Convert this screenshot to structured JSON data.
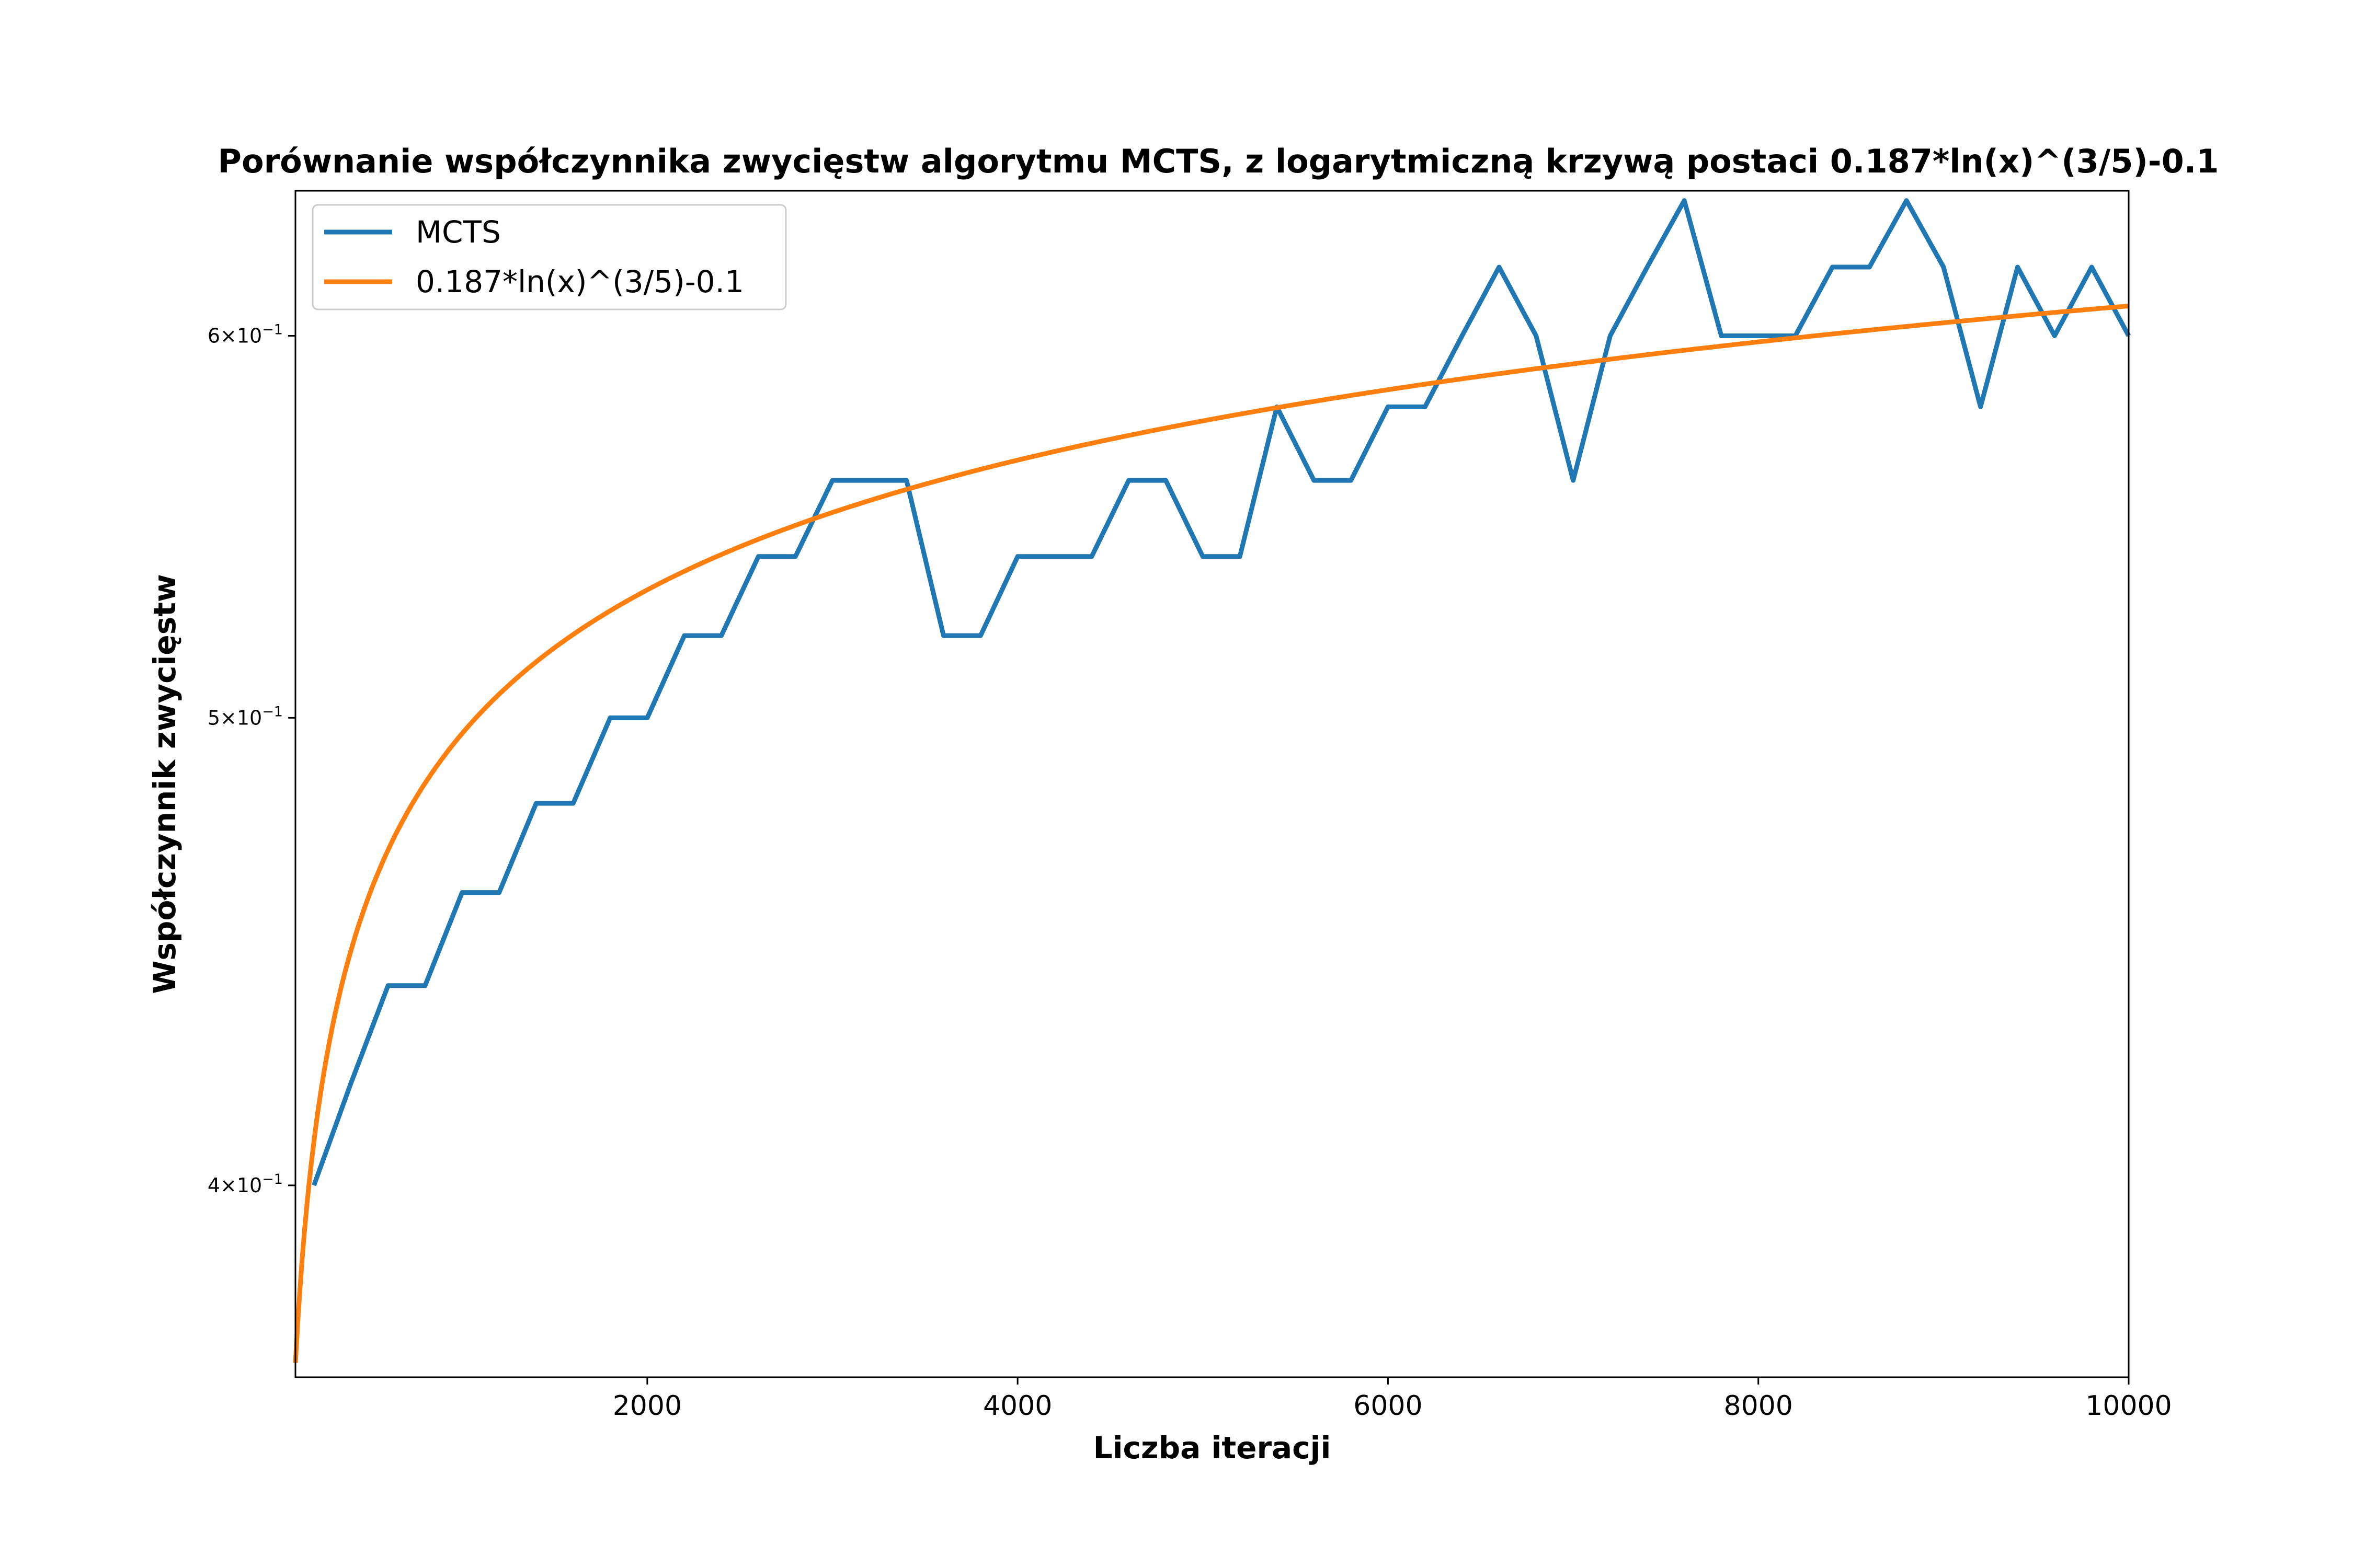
{
  "chart_data": {
    "type": "line",
    "title": "Porównanie współczynnika zwycięstw algorytmu MCTS, z logarytmiczną krzywą postaci 0.187*ln(x)^(3/5)-0.1",
    "xlabel": "Liczba iteracji",
    "ylabel": "Współczynnik zwycięstw",
    "xlim": [
      100,
      10000
    ],
    "ylim": [
      0.365,
      0.643
    ],
    "yscale": "log",
    "grid": false,
    "legend_position": "top-left",
    "x_ticks": [
      {
        "value": 2000,
        "label": "2000"
      },
      {
        "value": 4000,
        "label": "4000"
      },
      {
        "value": 6000,
        "label": "6000"
      },
      {
        "value": 8000,
        "label": "8000"
      },
      {
        "value": 10000,
        "label": "10000"
      }
    ],
    "y_ticks": [
      {
        "value": 0.4,
        "mantissa": "4",
        "exponent": "−1"
      },
      {
        "value": 0.5,
        "mantissa": "5",
        "exponent": "−1"
      },
      {
        "value": 0.6,
        "mantissa": "6",
        "exponent": "−1"
      }
    ],
    "series": [
      {
        "name": "MCTS",
        "color": "#1f77b4",
        "x": [
          200,
          400,
          600,
          800,
          1000,
          1200,
          1400,
          1600,
          1800,
          2000,
          2200,
          2400,
          2600,
          2800,
          3000,
          3200,
          3400,
          3600,
          3800,
          4000,
          4200,
          4400,
          4600,
          4800,
          5000,
          5200,
          5400,
          5600,
          5800,
          6000,
          6200,
          6400,
          6600,
          6800,
          7000,
          7200,
          7400,
          7600,
          7800,
          8000,
          8200,
          8400,
          8600,
          8800,
          9000,
          9200,
          9400,
          9600,
          9800,
          10000
        ],
        "values": [
          0.4,
          0.42,
          0.44,
          0.44,
          0.46,
          0.46,
          0.48,
          0.48,
          0.5,
          0.5,
          0.52,
          0.52,
          0.54,
          0.54,
          0.56,
          0.56,
          0.56,
          0.52,
          0.52,
          0.54,
          0.54,
          0.54,
          0.56,
          0.56,
          0.54,
          0.54,
          0.58,
          0.56,
          0.56,
          0.58,
          0.58,
          0.6,
          0.62,
          0.6,
          0.56,
          0.6,
          0.62,
          0.64,
          0.6,
          0.6,
          0.6,
          0.62,
          0.62,
          0.64,
          0.62,
          0.58,
          0.62,
          0.6,
          0.62,
          0.6
        ]
      },
      {
        "name": "0.187*ln(x)^(3/5)-0.1",
        "color": "#ff7f0e",
        "function": "0.187*ln(x)^(3/5)-0.1",
        "x_range": [
          100,
          10000
        ]
      }
    ]
  }
}
